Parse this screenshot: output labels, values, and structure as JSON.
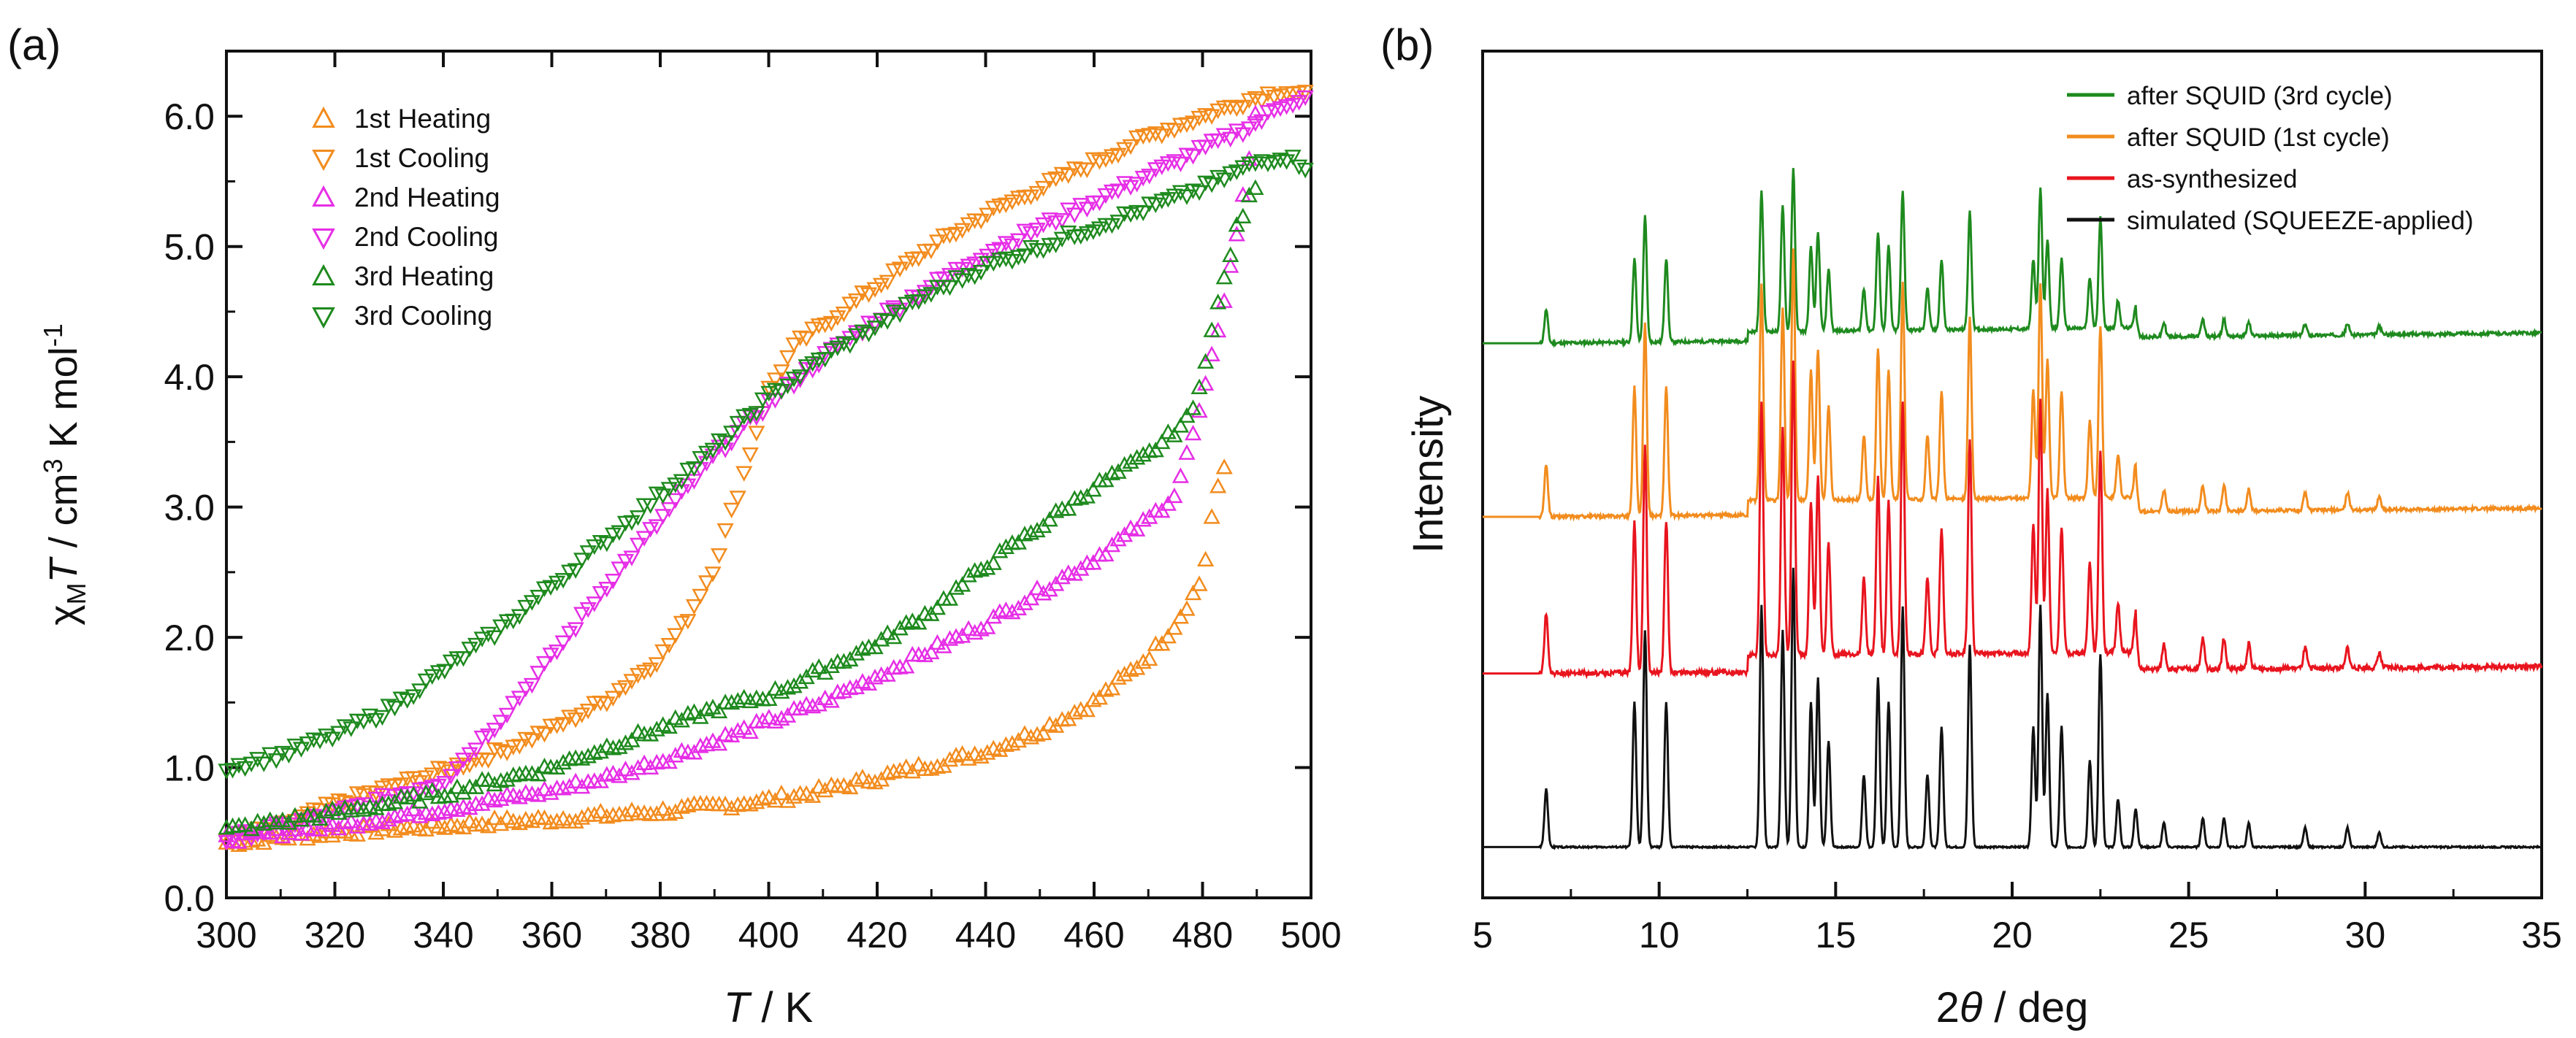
{
  "panel_a": {
    "label": "(a)",
    "ylabel_prefix": "χ",
    "ylabel_sub": "M",
    "ylabel_T": "T",
    "ylabel_units": " / cm",
    "ylabel_exp1": "3",
    "ylabel_mid": " K mol",
    "ylabel_exp2": "-1",
    "xlabel_T": "T",
    "xlabel_units": " / K"
  },
  "panel_b": {
    "label": "(b)",
    "ylabel": "Intensity",
    "xlabel_num": "2",
    "xlabel_theta": "θ",
    "xlabel_units": " / deg"
  },
  "chart_data": [
    {
      "type": "scatter",
      "title": "",
      "xlabel": "T / K",
      "ylabel": "χMT / cm3 K mol-1",
      "xlim": [
        300,
        500
      ],
      "ylim": [
        0.0,
        6.5
      ],
      "xticks": [
        "300",
        "320",
        "340",
        "360",
        "380",
        "400",
        "420",
        "440",
        "460",
        "480",
        "500"
      ],
      "yticks": [
        "0.0",
        "1.0",
        "2.0",
        "3.0",
        "4.0",
        "5.0",
        "6.0"
      ],
      "xtick_values": [
        300,
        320,
        340,
        360,
        380,
        400,
        420,
        440,
        460,
        480,
        500
      ],
      "ytick_values": [
        0,
        1,
        2,
        3,
        4,
        5,
        6
      ],
      "legend_position": "top-left",
      "series": [
        {
          "name": "1st Heating",
          "color": "#f28c1e",
          "marker": "triangle-up",
          "x": [
            300,
            310,
            320,
            330,
            340,
            350,
            360,
            370,
            380,
            390,
            400,
            410,
            420,
            430,
            440,
            450,
            460,
            470,
            475,
            480,
            482,
            485
          ],
          "y": [
            0.42,
            0.46,
            0.5,
            0.53,
            0.55,
            0.58,
            0.6,
            0.63,
            0.66,
            0.7,
            0.75,
            0.82,
            0.92,
            1.02,
            1.12,
            1.28,
            1.5,
            1.85,
            2.1,
            2.45,
            3.0,
            3.45
          ]
        },
        {
          "name": "1st Cooling",
          "color": "#f28c1e",
          "marker": "triangle-down",
          "x": [
            300,
            310,
            320,
            330,
            340,
            350,
            360,
            370,
            380,
            385,
            390,
            395,
            400,
            405,
            410,
            420,
            430,
            440,
            450,
            460,
            470,
            480,
            490,
            495,
            500
          ],
          "y": [
            0.45,
            0.55,
            0.72,
            0.85,
            0.98,
            1.12,
            1.3,
            1.52,
            1.85,
            2.15,
            2.55,
            3.2,
            3.9,
            4.25,
            4.4,
            4.7,
            5.0,
            5.25,
            5.45,
            5.65,
            5.85,
            6.0,
            6.15,
            6.2,
            6.15
          ]
        },
        {
          "name": "2nd Heating",
          "color": "#e62ee6",
          "marker": "triangle-up",
          "x": [
            300,
            320,
            340,
            360,
            370,
            380,
            390,
            400,
            410,
            420,
            430,
            440,
            450,
            460,
            470,
            475,
            480,
            485,
            488,
            490
          ],
          "y": [
            0.45,
            0.55,
            0.68,
            0.82,
            0.92,
            1.05,
            1.2,
            1.35,
            1.5,
            1.7,
            1.9,
            2.1,
            2.35,
            2.6,
            2.9,
            3.1,
            3.8,
            4.8,
            5.5,
            6.1
          ]
        },
        {
          "name": "2nd Cooling",
          "color": "#e62ee6",
          "marker": "triangle-down",
          "x": [
            300,
            320,
            340,
            350,
            360,
            370,
            380,
            390,
            400,
            410,
            420,
            430,
            440,
            450,
            460,
            470,
            480,
            490,
            495,
            500
          ],
          "y": [
            0.45,
            0.65,
            0.9,
            1.35,
            1.85,
            2.4,
            2.9,
            3.4,
            3.8,
            4.15,
            4.45,
            4.7,
            4.95,
            5.15,
            5.35,
            5.55,
            5.75,
            5.95,
            6.1,
            6.15
          ]
        },
        {
          "name": "3rd Heating",
          "color": "#1e8a1e",
          "marker": "triangle-up",
          "x": [
            300,
            320,
            340,
            360,
            370,
            380,
            390,
            400,
            410,
            420,
            430,
            440,
            450,
            460,
            470,
            478,
            482,
            486,
            490
          ],
          "y": [
            0.52,
            0.65,
            0.8,
            1.0,
            1.15,
            1.3,
            1.45,
            1.55,
            1.75,
            1.95,
            2.2,
            2.55,
            2.85,
            3.15,
            3.4,
            3.7,
            4.4,
            5.1,
            5.5
          ]
        },
        {
          "name": "3rd Cooling",
          "color": "#1e8a1e",
          "marker": "triangle-down",
          "x": [
            300,
            310,
            320,
            330,
            340,
            350,
            360,
            370,
            380,
            390,
            400,
            410,
            420,
            430,
            440,
            450,
            460,
            470,
            480,
            490,
            495,
            500
          ],
          "y": [
            1.0,
            1.1,
            1.25,
            1.45,
            1.75,
            2.05,
            2.4,
            2.75,
            3.1,
            3.45,
            3.85,
            4.15,
            4.4,
            4.65,
            4.85,
            5.0,
            5.15,
            5.3,
            5.45,
            5.65,
            5.7,
            5.6
          ]
        }
      ]
    },
    {
      "type": "line",
      "title": "",
      "xlabel": "2θ / deg",
      "ylabel": "Intensity",
      "xlim": [
        5,
        35
      ],
      "ylim": [
        0,
        1
      ],
      "xticks": [
        "5",
        "10",
        "15",
        "20",
        "25",
        "30",
        "35"
      ],
      "xtick_values": [
        5,
        10,
        15,
        20,
        25,
        30,
        35
      ],
      "legend_position": "top-right",
      "series": [
        {
          "name": "after SQUID (3rd cycle)",
          "color": "#1e8a1e",
          "baseline": 0.655,
          "scale": 0.55,
          "noise": 0.004,
          "tail": 0.012
        },
        {
          "name": "after SQUID (1st cycle)",
          "color": "#f28c1e",
          "baseline": 0.45,
          "scale": 0.85,
          "noise": 0.004,
          "tail": 0.01
        },
        {
          "name": "as-synthesized",
          "color": "#e8141e",
          "baseline": 0.265,
          "scale": 1.0,
          "noise": 0.006,
          "tail": 0.008
        },
        {
          "name": "simulated (SQUEEZE-applied)",
          "color": "#111111",
          "baseline": 0.06,
          "scale": 0.95,
          "noise": 0.002,
          "tail": 0.0
        }
      ],
      "peaks": [
        [
          6.8,
          0.12
        ],
        [
          9.3,
          0.3
        ],
        [
          9.6,
          0.45
        ],
        [
          10.2,
          0.3
        ],
        [
          12.9,
          0.5
        ],
        [
          13.5,
          0.45
        ],
        [
          13.8,
          0.58
        ],
        [
          14.3,
          0.3
        ],
        [
          14.5,
          0.35
        ],
        [
          14.8,
          0.22
        ],
        [
          15.8,
          0.15
        ],
        [
          16.2,
          0.35
        ],
        [
          16.5,
          0.3
        ],
        [
          16.9,
          0.5
        ],
        [
          17.6,
          0.15
        ],
        [
          18.0,
          0.25
        ],
        [
          18.8,
          0.42
        ],
        [
          20.6,
          0.25
        ],
        [
          20.8,
          0.5
        ],
        [
          21.0,
          0.32
        ],
        [
          21.4,
          0.25
        ],
        [
          22.2,
          0.18
        ],
        [
          22.5,
          0.4
        ],
        [
          23.0,
          0.1
        ],
        [
          23.5,
          0.08
        ],
        [
          24.3,
          0.05
        ],
        [
          25.4,
          0.06
        ],
        [
          26.0,
          0.06
        ],
        [
          26.7,
          0.05
        ],
        [
          28.3,
          0.04
        ],
        [
          29.5,
          0.04
        ],
        [
          30.4,
          0.03
        ]
      ]
    }
  ]
}
